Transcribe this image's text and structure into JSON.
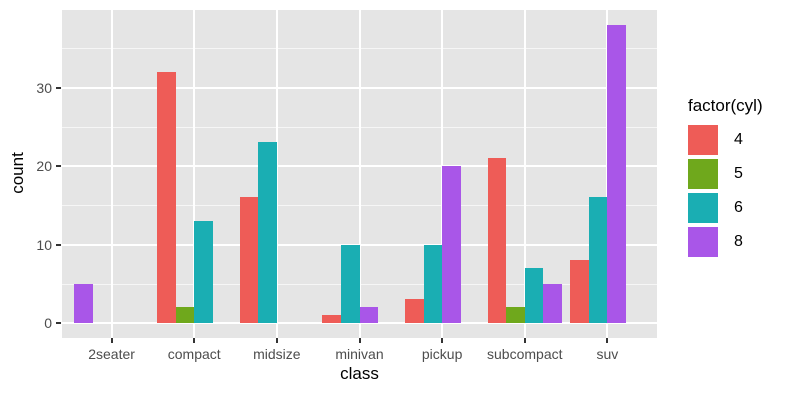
{
  "chart_data": {
    "type": "bar",
    "title": "",
    "xlabel": "class",
    "ylabel": "count",
    "legend_title": "factor(cyl)",
    "legend_position": "right",
    "categories": [
      "2seater",
      "compact",
      "midsize",
      "minivan",
      "pickup",
      "subcompact",
      "suv"
    ],
    "series": [
      {
        "name": "4",
        "color": "#EE5C57",
        "values": [
          0,
          32,
          16,
          1,
          3,
          21,
          8
        ]
      },
      {
        "name": "5",
        "color": "#6FA81C",
        "values": [
          0,
          2,
          0,
          0,
          0,
          2,
          0
        ]
      },
      {
        "name": "6",
        "color": "#1AAEB3",
        "values": [
          0,
          13,
          23,
          10,
          10,
          7,
          16
        ]
      },
      {
        "name": "8",
        "color": "#A956E8",
        "values": [
          5,
          0,
          0,
          2,
          20,
          5,
          38
        ]
      }
    ],
    "ylim": [
      0,
      39.9
    ],
    "yticks": [
      0,
      10,
      20,
      30
    ],
    "yticks_minor": [
      5,
      15,
      25,
      35
    ],
    "grid": true,
    "panel_bg": "#E5E5E5",
    "dodge": "left-packed-constant-width"
  }
}
